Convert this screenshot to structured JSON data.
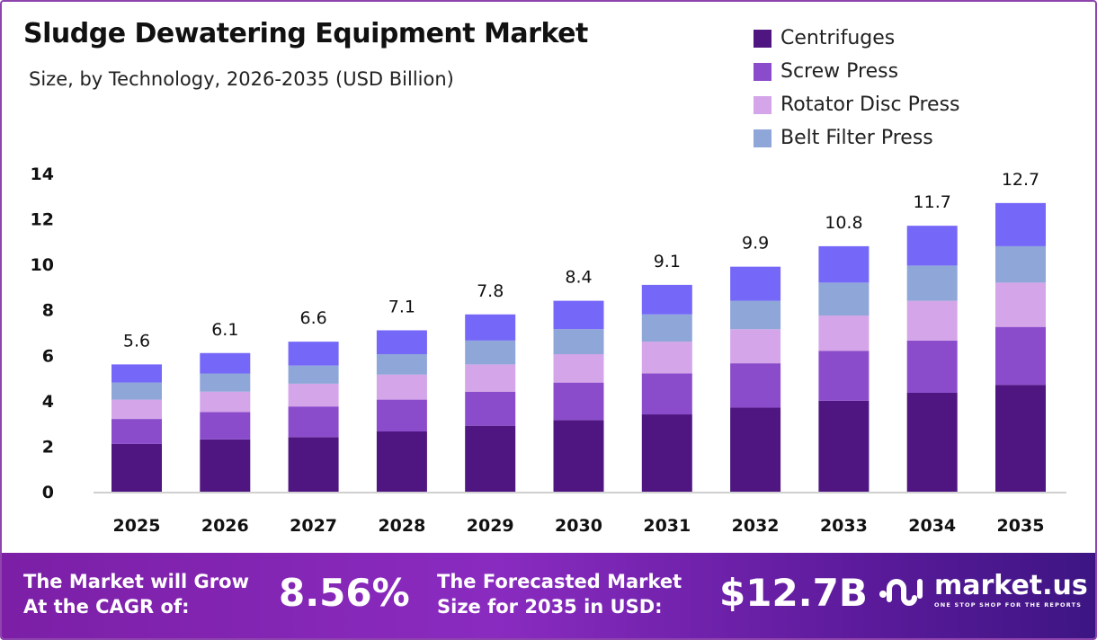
{
  "chart_data": {
    "type": "bar",
    "stacked": true,
    "title": "Sludge Dewatering Equipment Market",
    "subtitle": "Size, by Technology, 2026-2035 (USD Billion)",
    "xlabel": "",
    "ylabel": "",
    "ylim": [
      0,
      14
    ],
    "yticks": [
      0,
      2,
      4,
      6,
      8,
      10,
      12,
      14
    ],
    "grid": false,
    "legend_placement": "top-right",
    "categories": [
      "2025",
      "2026",
      "2027",
      "2028",
      "2029",
      "2030",
      "2031",
      "2032",
      "2033",
      "2034",
      "2035"
    ],
    "totals": [
      5.6,
      6.1,
      6.6,
      7.1,
      7.8,
      8.4,
      9.1,
      9.9,
      10.8,
      11.7,
      12.7
    ],
    "series": [
      {
        "name": "Centrifuges",
        "color": "#4f1580",
        "values": [
          2.1,
          2.3,
          2.4,
          2.65,
          2.9,
          3.15,
          3.4,
          3.7,
          4.0,
          4.35,
          4.7
        ]
      },
      {
        "name": "Screw Press",
        "color": "#8b4ccc",
        "values": [
          1.1,
          1.2,
          1.35,
          1.4,
          1.5,
          1.65,
          1.8,
          1.95,
          2.2,
          2.3,
          2.55
        ]
      },
      {
        "name": "Rotator Disc Press",
        "color": "#d4a5e8",
        "values": [
          0.85,
          0.9,
          1.0,
          1.1,
          1.2,
          1.25,
          1.4,
          1.5,
          1.55,
          1.75,
          1.95
        ]
      },
      {
        "name": "Belt Filter Press",
        "color": "#8fa6d8",
        "values": [
          0.75,
          0.8,
          0.8,
          0.9,
          1.05,
          1.1,
          1.2,
          1.25,
          1.45,
          1.55,
          1.6
        ]
      },
      {
        "color": "#7567f8",
        "values": [
          0.8,
          0.9,
          1.05,
          1.05,
          1.15,
          1.25,
          1.3,
          1.5,
          1.6,
          1.75,
          1.9
        ]
      }
    ]
  },
  "banner": {
    "cagr_label_1": "The Market will Grow",
    "cagr_label_2": "At the CAGR of:",
    "cagr_value": "8.56%",
    "forecast_label_1": "The Forecasted Market",
    "forecast_label_2": "Size for 2035 in USD:",
    "forecast_value": "$12.7B",
    "logo_name": "market.us",
    "logo_tagline": "ONE STOP SHOP FOR THE REPORTS"
  }
}
